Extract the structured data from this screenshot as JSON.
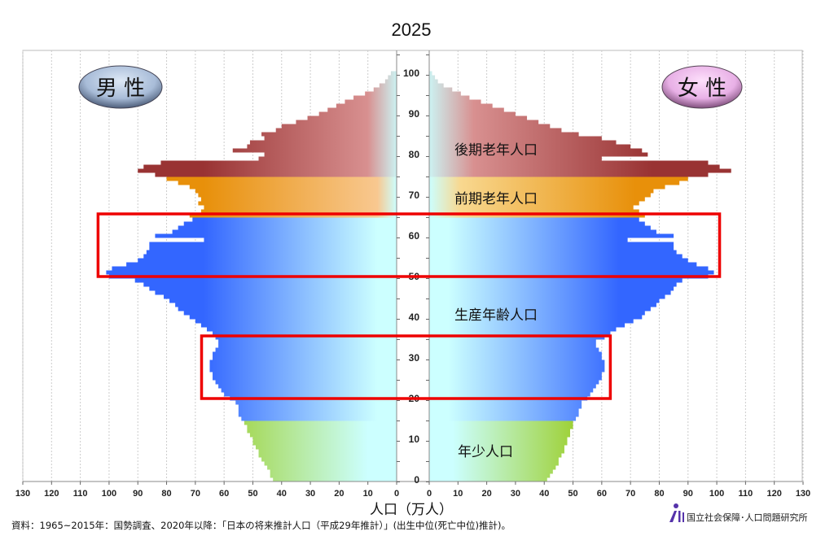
{
  "chart_data": {
    "type": "bar",
    "subtype": "population-pyramid",
    "title": "2025",
    "xlabel": "人口（万人）",
    "ylabel": "",
    "xlim": [
      0,
      130
    ],
    "x_ticks": [
      0,
      10,
      20,
      30,
      40,
      50,
      60,
      70,
      80,
      90,
      100,
      110,
      120,
      130
    ],
    "age_ticks": [
      0,
      10,
      20,
      30,
      40,
      50,
      60,
      70,
      80,
      90,
      100
    ],
    "ages_range": [
      0,
      100
    ],
    "grid": true,
    "legend": {
      "male": "男 性",
      "female": "女 性"
    },
    "groups": [
      {
        "name": "年少人口",
        "ages": [
          0,
          14
        ],
        "color": "#99cc22"
      },
      {
        "name": "生産年齢人口",
        "ages": [
          15,
          64
        ],
        "color": "#3366ff"
      },
      {
        "name": "前期老年人口",
        "ages": [
          65,
          74
        ],
        "color": "#e8900a"
      },
      {
        "name": "後期老年人口",
        "ages": [
          75,
          100
        ],
        "color": "#993333"
      }
    ],
    "series": [
      {
        "name": "男性",
        "values": [
          43,
          44,
          44,
          45,
          46,
          47,
          48,
          48,
          49,
          50,
          50,
          51,
          52,
          52,
          53,
          54,
          55,
          55,
          55,
          56,
          58,
          60,
          61,
          62,
          63,
          64,
          64,
          65,
          65,
          65,
          64,
          64,
          63,
          62,
          62,
          63,
          64,
          66,
          68,
          70,
          72,
          74,
          76,
          77,
          79,
          81,
          84,
          86,
          88,
          91,
          100,
          101,
          99,
          94,
          90,
          88,
          87,
          86,
          86,
          67,
          84,
          78,
          76,
          74,
          71,
          72,
          68,
          67,
          69,
          68,
          69,
          70,
          72,
          76,
          80,
          84,
          90,
          88,
          82,
          48,
          46,
          57,
          52,
          51,
          46,
          47,
          42,
          40,
          35,
          31,
          27,
          24,
          21,
          18,
          15,
          11,
          8,
          6,
          4,
          3,
          2
        ]
      },
      {
        "name": "女性",
        "values": [
          41,
          42,
          43,
          44,
          45,
          45,
          46,
          47,
          47,
          48,
          48,
          49,
          49,
          50,
          50,
          51,
          52,
          52,
          53,
          53,
          55,
          56,
          57,
          58,
          59,
          60,
          60,
          61,
          61,
          61,
          60,
          60,
          59,
          58,
          58,
          61,
          63,
          65,
          68,
          71,
          74,
          75,
          77,
          79,
          80,
          82,
          84,
          85,
          86,
          88,
          97,
          99,
          97,
          93,
          90,
          88,
          86,
          85,
          85,
          69,
          85,
          79,
          77,
          75,
          73,
          75,
          73,
          71,
          73,
          75,
          77,
          78,
          82,
          87,
          90,
          97,
          105,
          101,
          97,
          60,
          76,
          74,
          70,
          65,
          60,
          52,
          46,
          42,
          38,
          34,
          30,
          26,
          22,
          18,
          14,
          11,
          8,
          5,
          3,
          2,
          1
        ]
      }
    ],
    "highlights": [
      {
        "ages": [
          50,
          65
        ]
      },
      {
        "ages": [
          20,
          35
        ]
      }
    ],
    "highlight_color": "#ee0000"
  },
  "section_labels": [
    "後期老年人口",
    "前期老年人口",
    "生産年齢人口",
    "年少人口"
  ],
  "footer": {
    "source": "資料：1965~2015年：国勢調査、2020年以降：「日本の将来推計人口（平成29年推計）」(出生中位(死亡中位)推計)。",
    "logo_text": "国立社会保障･人口問題研究所"
  }
}
